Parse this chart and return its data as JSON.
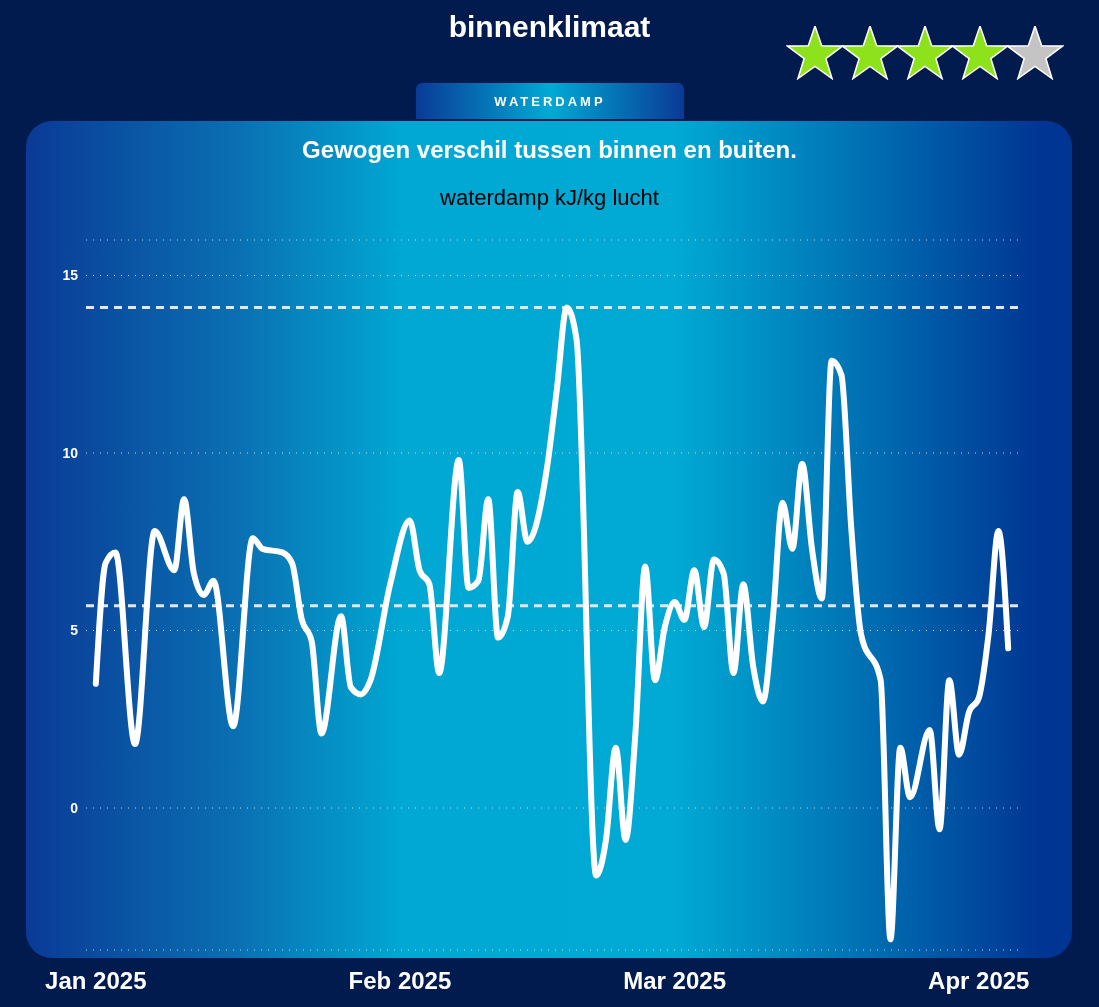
{
  "chart_data": {
    "type": "line",
    "title": "binnenklimaat",
    "subtitle": "Gewogen verschil tussen binnen en buiten.",
    "ylabel": "waterdamp kJ/kg lucht",
    "annotations": [
      "WATERDAMP"
    ],
    "x": [
      "2025-01-01",
      "2025-01-02",
      "2025-01-03",
      "2025-01-05",
      "2025-01-07",
      "2025-01-09",
      "2025-01-10",
      "2025-01-11",
      "2025-01-12",
      "2025-01-13",
      "2025-01-15",
      "2025-01-17",
      "2025-01-18",
      "2025-01-20",
      "2025-01-21",
      "2025-01-22",
      "2025-01-23",
      "2025-01-24",
      "2025-01-26",
      "2025-01-27",
      "2025-01-28",
      "2025-01-29",
      "2025-01-31",
      "2025-02-02",
      "2025-02-03",
      "2025-02-04",
      "2025-02-05",
      "2025-02-07",
      "2025-02-08",
      "2025-02-09",
      "2025-02-10",
      "2025-02-11",
      "2025-02-12",
      "2025-02-13",
      "2025-02-14",
      "2025-02-16",
      "2025-02-17",
      "2025-02-18",
      "2025-02-19",
      "2025-02-21",
      "2025-02-22",
      "2025-02-23",
      "2025-02-24",
      "2025-02-25",
      "2025-02-26",
      "2025-02-27",
      "2025-02-28",
      "2025-03-01",
      "2025-03-02",
      "2025-03-03",
      "2025-03-04",
      "2025-03-05",
      "2025-03-06",
      "2025-03-07",
      "2025-03-08",
      "2025-03-09",
      "2025-03-10",
      "2025-03-11",
      "2025-03-12",
      "2025-03-13",
      "2025-03-14",
      "2025-03-15",
      "2025-03-16",
      "2025-03-17",
      "2025-03-18",
      "2025-03-19",
      "2025-03-20",
      "2025-03-22",
      "2025-03-23",
      "2025-03-24",
      "2025-03-25",
      "2025-03-27",
      "2025-03-28",
      "2025-03-29",
      "2025-03-30",
      "2025-03-31",
      "2025-04-01",
      "2025-04-02",
      "2025-04-03",
      "2025-04-04"
    ],
    "series": [
      {
        "color": "#ffffff",
        "line_style": "solid",
        "values": [
          3.5,
          6.9,
          7.2,
          1.8,
          7.8,
          6.7,
          8.7,
          6.6,
          6.0,
          6.4,
          2.3,
          7.6,
          7.3,
          7.2,
          6.9,
          5.3,
          4.7,
          2.1,
          5.4,
          3.4,
          3.2,
          3.6,
          6.3,
          8.1,
          6.7,
          6.3,
          3.8,
          9.8,
          6.2,
          6.4,
          8.7,
          4.8,
          5.4,
          8.9,
          7.5,
          9.6,
          11.8,
          14.1,
          13.2,
          -1.9,
          -0.9,
          1.7,
          -0.9,
          2.1,
          6.8,
          3.6,
          5.1,
          5.8,
          5.3,
          6.7,
          5.1,
          7.0,
          6.6,
          3.8,
          6.3,
          4.0,
          3.0,
          5.3,
          8.6,
          7.3,
          9.7,
          7.3,
          5.9,
          12.6,
          12.2,
          7.9,
          4.9,
          3.6,
          -3.7,
          1.7,
          0.3,
          2.2,
          -0.6,
          3.6,
          1.5,
          2.7,
          3.1,
          4.9,
          7.8,
          4.5
        ]
      }
    ],
    "xlim": [
      "2024-12-31",
      "2025-04-05"
    ],
    "xticks": [
      {
        "value": "2025-01-01",
        "label": "Jan 2025"
      },
      {
        "value": "2025-02-01",
        "label": "Feb 2025"
      },
      {
        "value": "2025-03-01",
        "label": "Mar 2025"
      },
      {
        "value": "2025-04-01",
        "label": "Apr 2025"
      }
    ],
    "ylim": [
      -4,
      16
    ],
    "yticks": [
      0,
      5,
      10,
      15
    ],
    "grid": "y",
    "marker": "none",
    "ref_lines": [
      {
        "axis": "y",
        "value": 14.1,
        "color": "#e6e6e6",
        "line_style": "dashed"
      },
      {
        "axis": "y",
        "value": 5.7,
        "color": "#e6e6e6",
        "line_style": "dashed"
      }
    ]
  }
}
